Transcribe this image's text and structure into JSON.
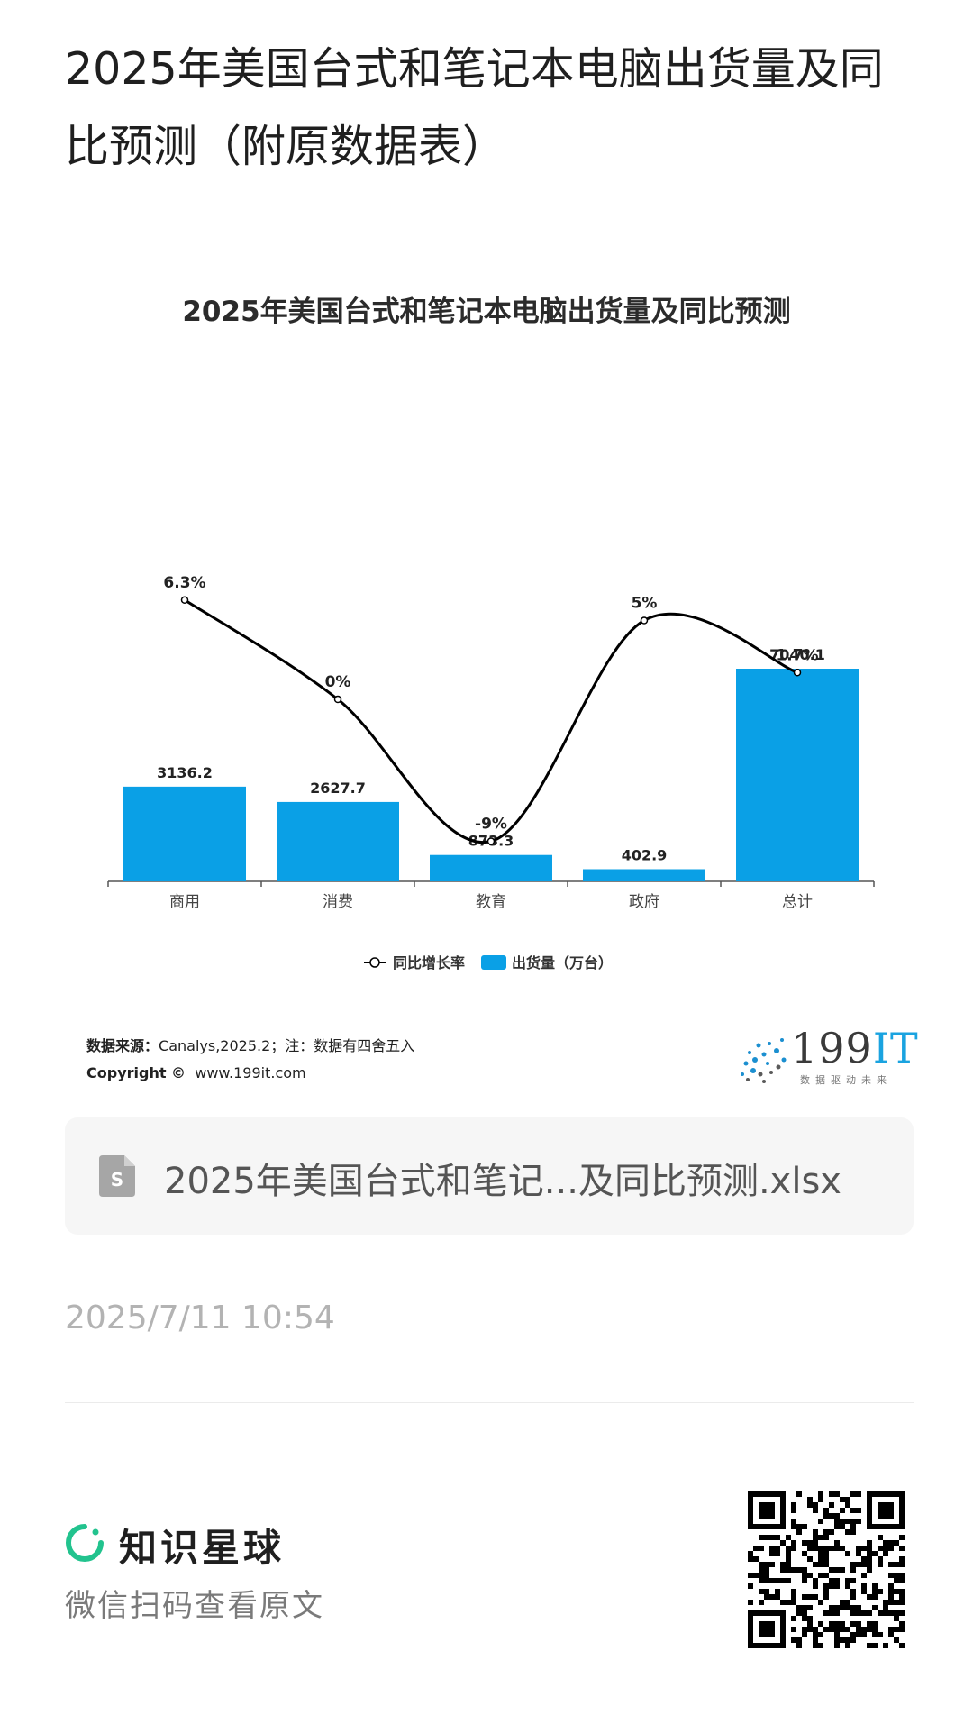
{
  "post": {
    "title": "2025年美国台式和笔记本电脑出货量及同比预测（附原数据表）",
    "timestamp": "2025/7/11 10:54"
  },
  "chart": {
    "source_label": "数据来源：",
    "source_text": "Canalys,2025.2；注：数据有四舍五入",
    "copyright_label": "Copyright ©",
    "copyright_text": "www.199it.com"
  },
  "chart_data": {
    "type": "bar",
    "title": "2025年美国台式和笔记本电脑出货量及同比预测",
    "categories": [
      "商用",
      "消费",
      "教育",
      "政府",
      "总计"
    ],
    "series": [
      {
        "name": "出货量（万台）",
        "type": "bar",
        "color": "#0aa0e6",
        "values": [
          3136.2,
          2627.7,
          873.3,
          402.9,
          7040.1
        ]
      },
      {
        "name": "同比增长率",
        "type": "line",
        "color": "#000000",
        "values": [
          6.3,
          0,
          -9,
          5,
          1.7
        ],
        "labels": [
          "6.3%",
          "0%",
          "-9%",
          "5%",
          "1.7%"
        ]
      }
    ],
    "legend": "bottom-center",
    "grid": false
  },
  "brand": {
    "name": "199",
    "name_suffix": "IT",
    "slogan": "数据驱动未来"
  },
  "file": {
    "name": "2025年美国台式和笔记...及同比预测.xlsx",
    "icon": "spreadsheet-file-icon",
    "icon_letter": "S"
  },
  "footer": {
    "brand": "知识星球",
    "hint": "微信扫码查看原文",
    "accent": "#22c38e"
  }
}
